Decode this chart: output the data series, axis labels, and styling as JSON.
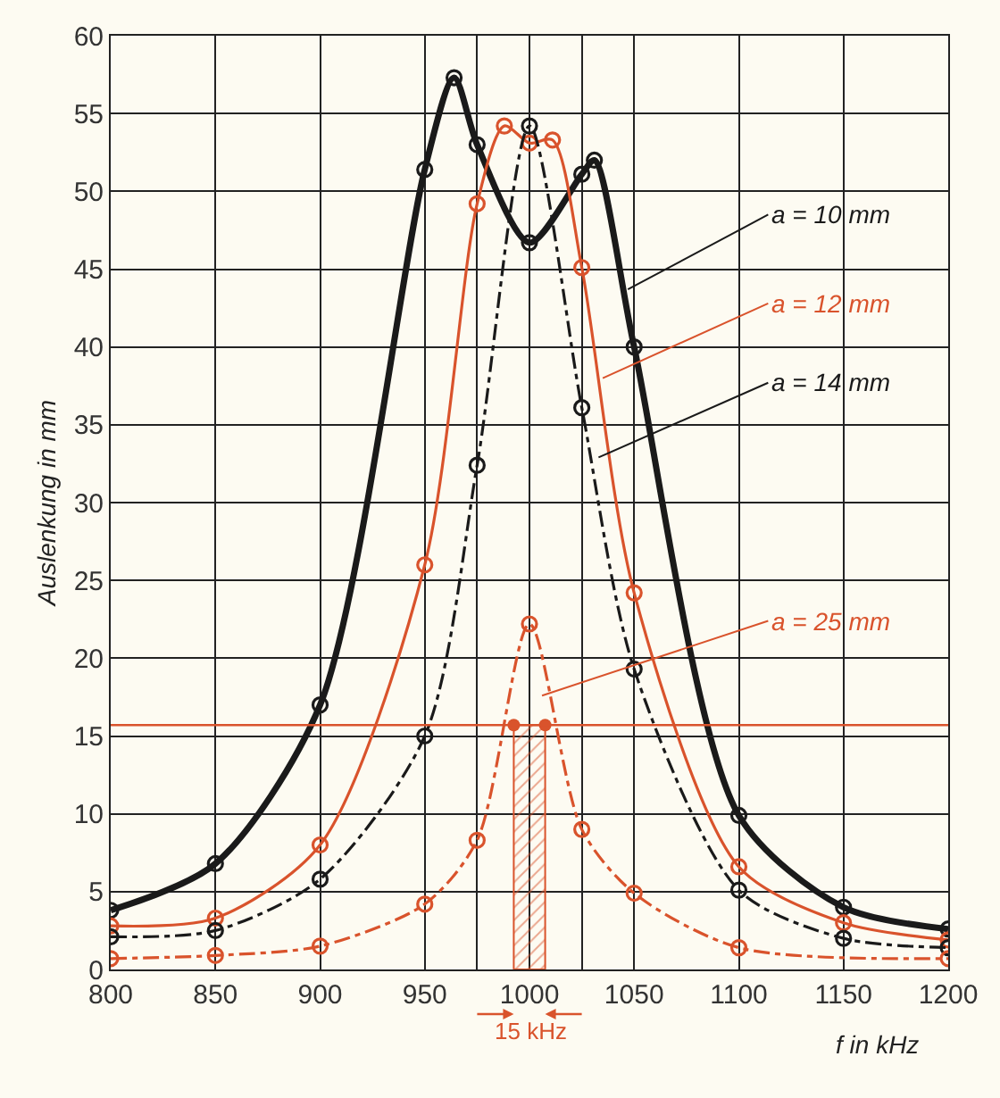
{
  "chart_data": {
    "type": "line",
    "xlabel": "f in kHz",
    "ylabel": "Auslenkung in mm",
    "xlim": [
      800,
      1200
    ],
    "ylim": [
      0,
      60
    ],
    "xticks": [
      800,
      850,
      900,
      950,
      {
        "value": 975,
        "label": null
      },
      1000,
      {
        "value": 1025,
        "label": null
      },
      1050,
      1100,
      1150,
      1200
    ],
    "yticks": [
      0,
      5,
      10,
      15,
      20,
      25,
      30,
      35,
      40,
      45,
      50,
      55,
      60
    ],
    "grid": true,
    "marker": "circle",
    "series": [
      {
        "color": "#1a1a1a",
        "line_style": "solid",
        "x": [
          800,
          850,
          900,
          950,
          964,
          975,
          1000,
          1025,
          1031,
          1050,
          1100,
          1150,
          1200
        ],
        "values": [
          3.8,
          6.8,
          17,
          51.4,
          57.3,
          53,
          46.7,
          51.1,
          52,
          40,
          9.9,
          4,
          2.6
        ]
      },
      {
        "color": "#d9532c",
        "line_style": "solid",
        "x": [
          800,
          850,
          900,
          950,
          975,
          988,
          1000,
          1011,
          1025,
          1050,
          1100,
          1150,
          1200
        ],
        "values": [
          2.8,
          3.3,
          8,
          26,
          49.2,
          54.2,
          53.1,
          53.3,
          45.1,
          24.2,
          6.6,
          3,
          1.9
        ]
      },
      {
        "color": "#1a1a1a",
        "line_style": "dashed",
        "x": [
          800,
          850,
          900,
          950,
          975,
          1000,
          1025,
          1050,
          1100,
          1150,
          1200
        ],
        "values": [
          2.1,
          2.5,
          5.8,
          15,
          32.4,
          54.2,
          36.1,
          19.3,
          5.1,
          2,
          1.4
        ]
      },
      {
        "color": "#d9532c",
        "line_style": "dashed",
        "x": [
          800,
          850,
          900,
          950,
          975,
          1000,
          1025,
          1050,
          1100,
          1200
        ],
        "values": [
          0.7,
          0.9,
          1.5,
          4.2,
          8.3,
          22.2,
          9,
          4.9,
          1.4,
          0.7
        ]
      },
      {
        "type": "scatter",
        "color": "#d9532c",
        "x": [
          992.5,
          1007.5
        ],
        "values": [
          15.7,
          15.7
        ]
      }
    ],
    "annotations": [
      {
        "text": "a = 10 mm",
        "x": 1047,
        "y": 43.7
      },
      {
        "text": "a = 12 mm",
        "x": 1035,
        "y": 38
      },
      {
        "text": "a = 14 mm",
        "x": 1033,
        "y": 32.9
      },
      {
        "text": "a = 25 mm",
        "x": 1006,
        "y": 17.6
      }
    ],
    "ref_lines": [
      {
        "axis": "y",
        "value": 15.7,
        "color": "#d9532c"
      }
    ],
    "bands": [
      {
        "axis": "x",
        "from": 992.5,
        "to": 1007.5,
        "label": "15 kHz",
        "color": "#d9532c"
      }
    ]
  }
}
